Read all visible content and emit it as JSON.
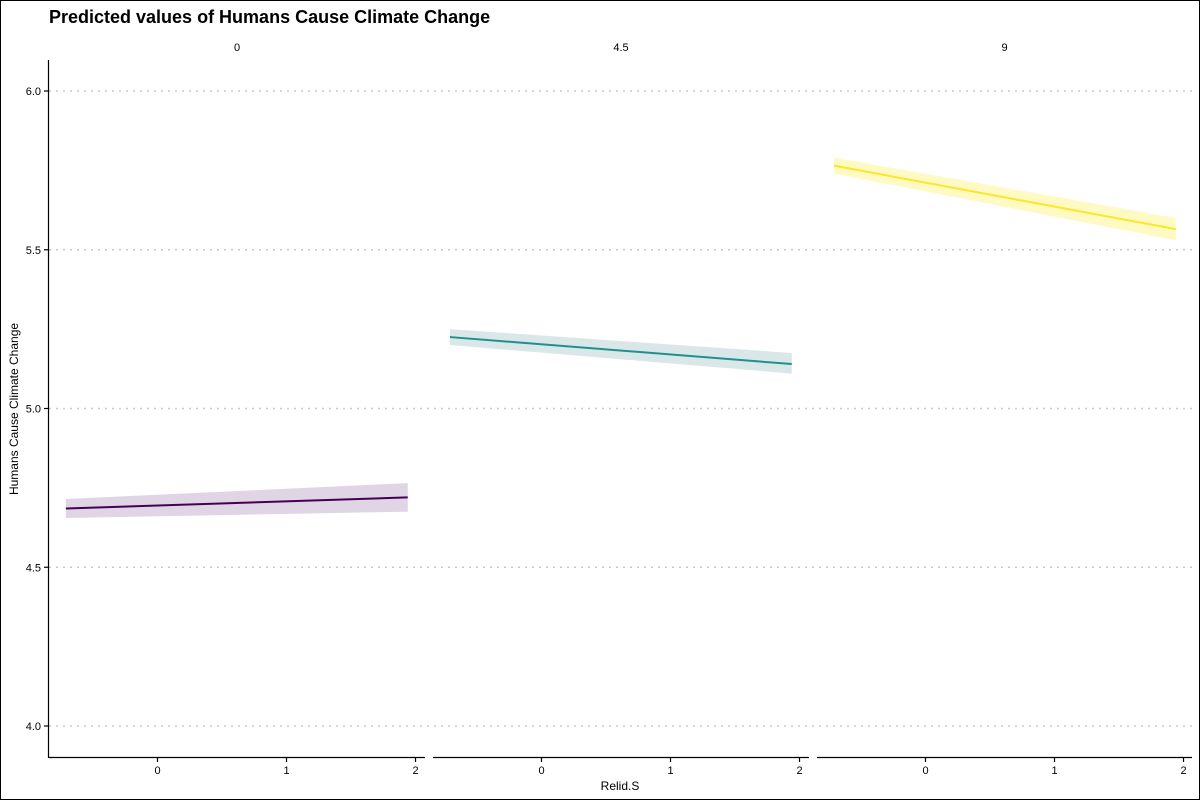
{
  "chart_data": {
    "type": "line",
    "title": "Predicted values of Humans Cause Climate Change",
    "xlabel": "Relid.S",
    "ylabel": "Humans Cause Climate Change",
    "ylim": [
      4.0,
      6.0
    ],
    "y_ticks": [
      "4.0",
      "4.5",
      "5.0",
      "5.5",
      "6.0"
    ],
    "x_ticks": [
      "0",
      "1",
      "2"
    ],
    "grid": "horizontal dotted",
    "panels": [
      {
        "facet": "0",
        "color": "#440154",
        "band_color": "#e0d5e4",
        "x": [
          -0.71,
          1.94
        ],
        "y": [
          4.685,
          4.72
        ],
        "lower": [
          4.655,
          4.675
        ],
        "upper": [
          4.715,
          4.765
        ]
      },
      {
        "facet": "4.5",
        "color": "#21908c",
        "band_color": "#d9e7e8",
        "x": [
          -0.71,
          1.94
        ],
        "y": [
          5.225,
          5.14
        ],
        "lower": [
          5.2,
          5.11
        ],
        "upper": [
          5.25,
          5.175
        ]
      },
      {
        "facet": "9",
        "color": "#fde725",
        "band_color": "#fff9c4",
        "x": [
          -0.71,
          1.94
        ],
        "y": [
          5.765,
          5.565
        ],
        "lower": [
          5.74,
          5.53
        ],
        "upper": [
          5.79,
          5.6
        ]
      }
    ]
  }
}
